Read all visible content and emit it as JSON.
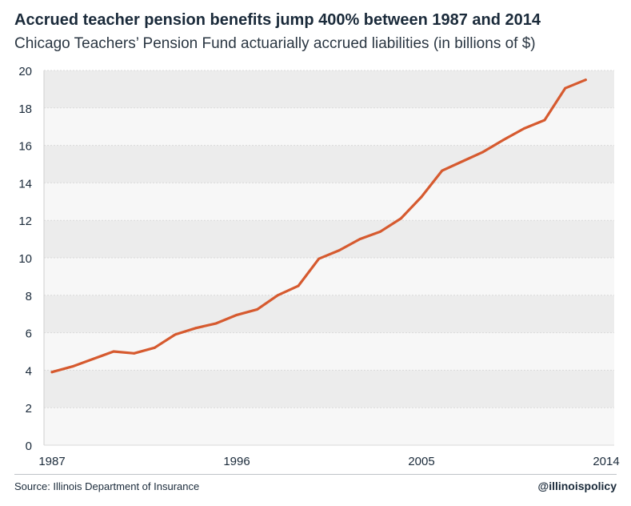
{
  "chart_data": {
    "type": "line",
    "title": "Accrued teacher pension benefits jump 400% between 1987 and 2014",
    "subtitle": "Chicago Teachers’ Pension Fund actuarially accrued liabilities (in billions of $)",
    "x": [
      1987,
      1988,
      1989,
      1990,
      1991,
      1992,
      1993,
      1994,
      1995,
      1996,
      1997,
      1998,
      1999,
      2000,
      2001,
      2002,
      2003,
      2004,
      2005,
      2006,
      2007,
      2008,
      2009,
      2010,
      2011,
      2012,
      2013,
      2014
    ],
    "series": [
      {
        "values": [
          3.9,
          4.2,
          4.6,
          5.0,
          4.9,
          5.2,
          5.9,
          6.25,
          6.5,
          6.95,
          7.25,
          8.0,
          8.5,
          9.95,
          10.4,
          11.0,
          11.4,
          12.1,
          13.25,
          14.65,
          15.15,
          15.65,
          16.3,
          16.9,
          17.35,
          19.05,
          19.5,
          null
        ],
        "color": "#d65a2f"
      }
    ],
    "x_ticks": [
      "1987",
      "1996",
      "2005",
      "2014"
    ],
    "y_ticks": [
      "0",
      "2",
      "4",
      "6",
      "8",
      "10",
      "12",
      "14",
      "16",
      "18",
      "20"
    ],
    "ylim": [
      0,
      20
    ],
    "xlim": [
      1987,
      2014
    ],
    "grid": "alternating horizontal bands",
    "band_color": "#ececec",
    "grid_line_color": "#d9d9d9"
  },
  "footer": {
    "source": "Source: Illinois Department of Insurance",
    "handle": "@illinoispolicy"
  }
}
